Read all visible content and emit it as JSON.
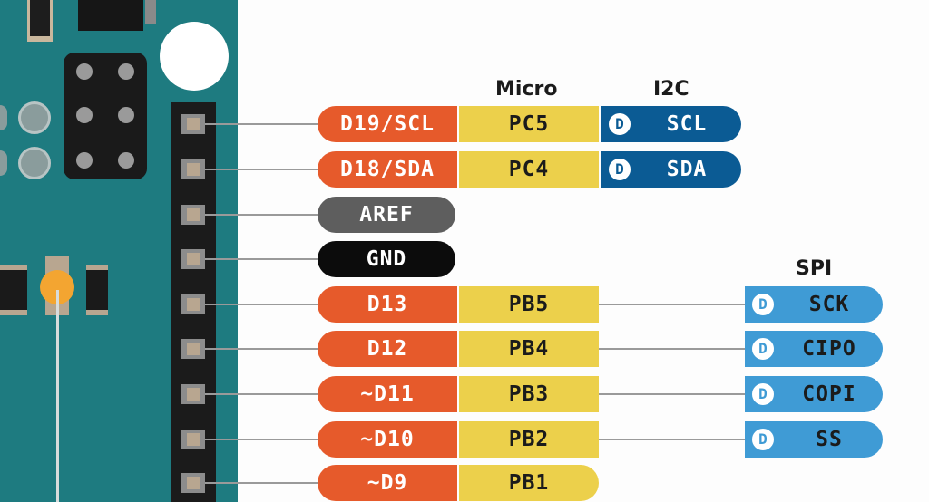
{
  "headers": {
    "micro": "Micro",
    "i2c": "I2C",
    "spi": "SPI"
  },
  "rows": [
    {
      "digital": "D19/SCL",
      "micro": "PC5",
      "i2c_badge": "D",
      "i2c": "SCL"
    },
    {
      "digital": "D18/SDA",
      "micro": "PC4",
      "i2c_badge": "D",
      "i2c": "SDA"
    },
    {
      "power": "AREF"
    },
    {
      "power": "GND"
    },
    {
      "digital": "D13",
      "micro": "PB5",
      "spi_badge": "D",
      "spi": "SCK"
    },
    {
      "digital": "D12",
      "micro": "PB4",
      "spi_badge": "D",
      "spi": "CIPO"
    },
    {
      "digital": "~D11",
      "micro": "PB3",
      "spi_badge": "D",
      "spi": "COPI"
    },
    {
      "digital": "~D10",
      "micro": "PB2",
      "spi_badge": "D",
      "spi": "SS"
    },
    {
      "digital": "~D9",
      "micro": "PB1"
    }
  ],
  "colors": {
    "board": "#1e7b80",
    "digital": "#e65a2b",
    "micro": "#ecd04b",
    "i2c": "#0b5b94",
    "spi": "#3f9bd5",
    "aref": "#5e5e5e",
    "gnd": "#0c0c0c"
  }
}
